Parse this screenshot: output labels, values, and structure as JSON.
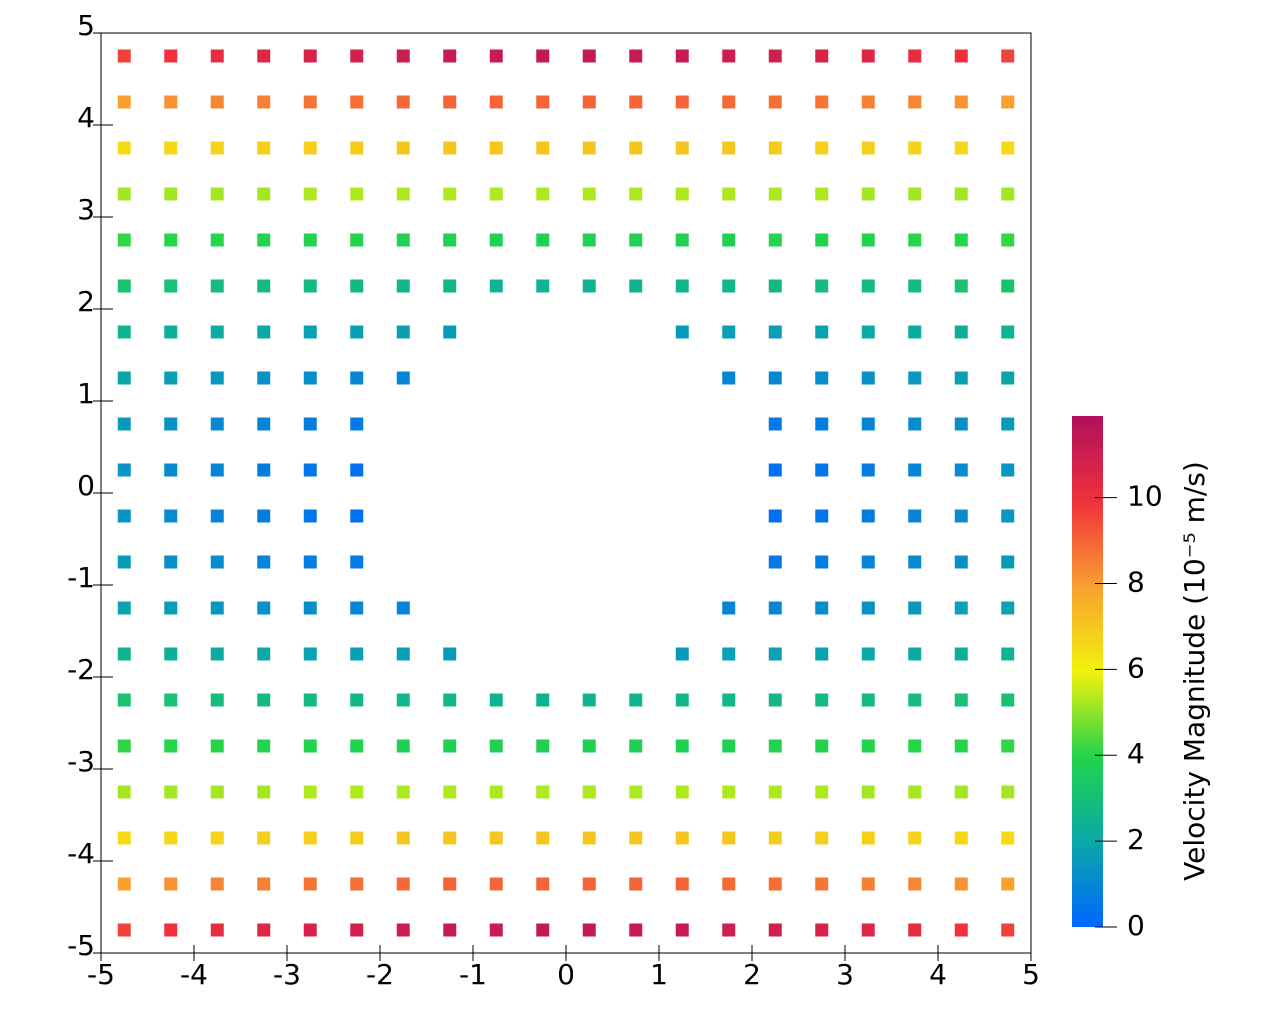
{
  "chart_data": {
    "type": "scatter",
    "x": [
      -4.75,
      -4.25,
      -3.75,
      -3.25,
      -2.75,
      -2.25,
      -1.75,
      -1.25,
      -0.75,
      -0.25,
      0.25,
      0.75,
      1.25,
      1.75,
      2.25,
      2.75,
      3.25,
      3.75,
      4.25,
      4.75
    ],
    "y": [
      4.75,
      4.25,
      3.75,
      3.25,
      2.75,
      2.25,
      1.75,
      1.25,
      0.75,
      0.25,
      -0.25,
      -0.75,
      -1.25,
      -1.75,
      -2.25,
      -2.75,
      -3.25,
      -3.75,
      -4.25,
      -4.75
    ],
    "z": [
      [
        9.6,
        9.9,
        10.2,
        10.5,
        10.7,
        10.9,
        11.0,
        11.2,
        11.2,
        11.3,
        11.3,
        11.2,
        11.2,
        11.0,
        10.9,
        10.7,
        10.5,
        10.2,
        9.9,
        9.6
      ],
      [
        7.9,
        8.2,
        8.4,
        8.5,
        8.7,
        8.8,
        8.9,
        9.0,
        9.0,
        9.0,
        9.0,
        9.0,
        9.0,
        8.9,
        8.8,
        8.7,
        8.5,
        8.4,
        8.2,
        7.9
      ],
      [
        6.5,
        6.6,
        6.7,
        6.8,
        6.8,
        6.9,
        7.0,
        7.0,
        7.0,
        7.0,
        7.0,
        7.0,
        7.0,
        7.0,
        6.9,
        6.8,
        6.8,
        6.7,
        6.6,
        6.5
      ],
      [
        5.2,
        5.2,
        5.2,
        5.2,
        5.3,
        5.3,
        5.3,
        5.3,
        5.3,
        5.3,
        5.3,
        5.3,
        5.3,
        5.3,
        5.3,
        5.3,
        5.2,
        5.2,
        5.2,
        5.2
      ],
      [
        4.1,
        4.0,
        4.0,
        3.9,
        3.9,
        3.9,
        3.8,
        3.8,
        3.8,
        3.8,
        3.8,
        3.8,
        3.8,
        3.8,
        3.9,
        3.9,
        3.9,
        4.0,
        4.0,
        4.1
      ],
      [
        3.2,
        3.1,
        2.9,
        2.8,
        2.8,
        2.7,
        2.6,
        2.6,
        2.5,
        2.5,
        2.5,
        2.5,
        2.6,
        2.6,
        2.7,
        2.8,
        2.8,
        2.9,
        3.1,
        3.2
      ],
      [
        2.5,
        2.3,
        2.1,
        2.0,
        1.8,
        1.7,
        1.7,
        1.6,
        null,
        null,
        null,
        null,
        1.6,
        1.7,
        1.7,
        1.8,
        2.0,
        2.1,
        2.3,
        2.5
      ],
      [
        1.9,
        1.7,
        1.5,
        1.3,
        1.2,
        1.0,
        0.9,
        null,
        null,
        null,
        null,
        null,
        null,
        0.9,
        1.0,
        1.2,
        1.3,
        1.5,
        1.7,
        1.9
      ],
      [
        1.6,
        1.3,
        1.1,
        0.9,
        0.7,
        0.6,
        null,
        null,
        null,
        null,
        null,
        null,
        null,
        null,
        0.6,
        0.7,
        0.9,
        1.1,
        1.3,
        1.6
      ],
      [
        1.4,
        1.1,
        0.9,
        0.7,
        0.5,
        0.3,
        null,
        null,
        null,
        null,
        null,
        null,
        null,
        null,
        0.3,
        0.5,
        0.7,
        0.9,
        1.1,
        1.4
      ],
      [
        1.4,
        1.1,
        0.9,
        0.7,
        0.5,
        0.3,
        null,
        null,
        null,
        null,
        null,
        null,
        null,
        null,
        0.3,
        0.5,
        0.7,
        0.9,
        1.1,
        1.4
      ],
      [
        1.6,
        1.3,
        1.1,
        0.9,
        0.7,
        0.6,
        null,
        null,
        null,
        null,
        null,
        null,
        null,
        null,
        0.6,
        0.7,
        0.9,
        1.1,
        1.3,
        1.6
      ],
      [
        1.9,
        1.7,
        1.5,
        1.3,
        1.2,
        1.0,
        0.9,
        null,
        null,
        null,
        null,
        null,
        null,
        0.9,
        1.0,
        1.2,
        1.3,
        1.5,
        1.7,
        1.9
      ],
      [
        2.5,
        2.3,
        2.1,
        2.0,
        1.8,
        1.7,
        1.7,
        1.6,
        null,
        null,
        null,
        null,
        1.6,
        1.7,
        1.7,
        1.8,
        2.0,
        2.1,
        2.3,
        2.5
      ],
      [
        3.2,
        3.1,
        2.9,
        2.8,
        2.8,
        2.7,
        2.6,
        2.6,
        2.5,
        2.5,
        2.5,
        2.5,
        2.6,
        2.6,
        2.7,
        2.8,
        2.8,
        2.9,
        3.1,
        3.2
      ],
      [
        4.1,
        4.0,
        4.0,
        3.9,
        3.9,
        3.9,
        3.8,
        3.8,
        3.8,
        3.8,
        3.8,
        3.8,
        3.8,
        3.8,
        3.9,
        3.9,
        3.9,
        4.0,
        4.0,
        4.1
      ],
      [
        5.2,
        5.2,
        5.2,
        5.2,
        5.3,
        5.3,
        5.3,
        5.3,
        5.3,
        5.3,
        5.3,
        5.3,
        5.3,
        5.3,
        5.3,
        5.3,
        5.2,
        5.2,
        5.2,
        5.2
      ],
      [
        6.5,
        6.6,
        6.7,
        6.8,
        6.8,
        6.9,
        7.0,
        7.0,
        7.0,
        7.0,
        7.0,
        7.0,
        7.0,
        7.0,
        6.9,
        6.8,
        6.8,
        6.7,
        6.6,
        6.5
      ],
      [
        7.9,
        8.2,
        8.4,
        8.5,
        8.7,
        8.8,
        8.9,
        9.0,
        9.0,
        9.0,
        9.0,
        9.0,
        9.0,
        8.9,
        8.8,
        8.7,
        8.5,
        8.4,
        8.2,
        7.9
      ],
      [
        9.6,
        9.9,
        10.2,
        10.5,
        10.7,
        10.9,
        11.0,
        11.2,
        11.2,
        11.3,
        11.3,
        11.2,
        11.2,
        11.0,
        10.9,
        10.7,
        10.5,
        10.2,
        9.9,
        9.6
      ]
    ],
    "xlim": [
      -5,
      5
    ],
    "ylim": [
      -5,
      5
    ],
    "xticks": [
      -5,
      -4,
      -3,
      -2,
      -1,
      0,
      1,
      2,
      3,
      4,
      5
    ],
    "yticks": [
      -5,
      -4,
      -3,
      -2,
      -1,
      0,
      1,
      2,
      3,
      4,
      5
    ],
    "colorbar": {
      "label": "Velocity Magnitude (10⁻⁵ m/s)",
      "lim": [
        0,
        11.9
      ],
      "ticks": [
        0,
        2,
        4,
        6,
        8,
        10
      ]
    },
    "colormap": [
      "#0066ff",
      "#0aa8a8",
      "#22d44a",
      "#f2f20a",
      "#f8a030",
      "#f0303c",
      "#b0105e"
    ]
  }
}
